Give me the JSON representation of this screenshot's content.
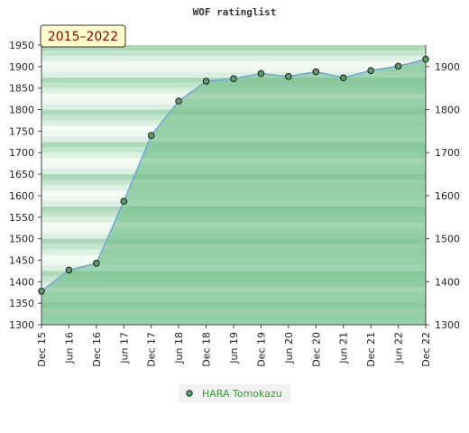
{
  "chart_data": {
    "type": "area",
    "title": "WOF ratinglist",
    "badge": "2015–2022",
    "xlabel": "",
    "ylabel": "",
    "ylim": [
      1300,
      1950
    ],
    "left_ticks": [
      1300,
      1350,
      1400,
      1450,
      1500,
      1550,
      1600,
      1650,
      1700,
      1750,
      1800,
      1850,
      1900,
      1950
    ],
    "right_ticks": [
      1300,
      1400,
      1500,
      1600,
      1700,
      1800,
      1900
    ],
    "x": [
      "Dec 15",
      "Jun 16",
      "Dec 16",
      "Jun 17",
      "Dec 17",
      "Jun 18",
      "Dec 18",
      "Jun 19",
      "Dec 19",
      "Jun 20",
      "Dec 20",
      "Jun 21",
      "Dec 21",
      "Jun 22",
      "Dec 22"
    ],
    "series": [
      {
        "name": "HARA Tomokazu",
        "values": [
          1378,
          1427,
          1443,
          1587,
          1740,
          1820,
          1866,
          1872,
          1884,
          1877,
          1888,
          1874,
          1891,
          1901,
          1917
        ]
      }
    ],
    "grid": true,
    "legend_position": "bottom-center",
    "colors": {
      "fill": "#7dc494",
      "line": "#6ba8d8",
      "marker": "#5a9e6a",
      "badge_bg": "#ffffcc",
      "legend_text": "#3a9a3a"
    }
  }
}
